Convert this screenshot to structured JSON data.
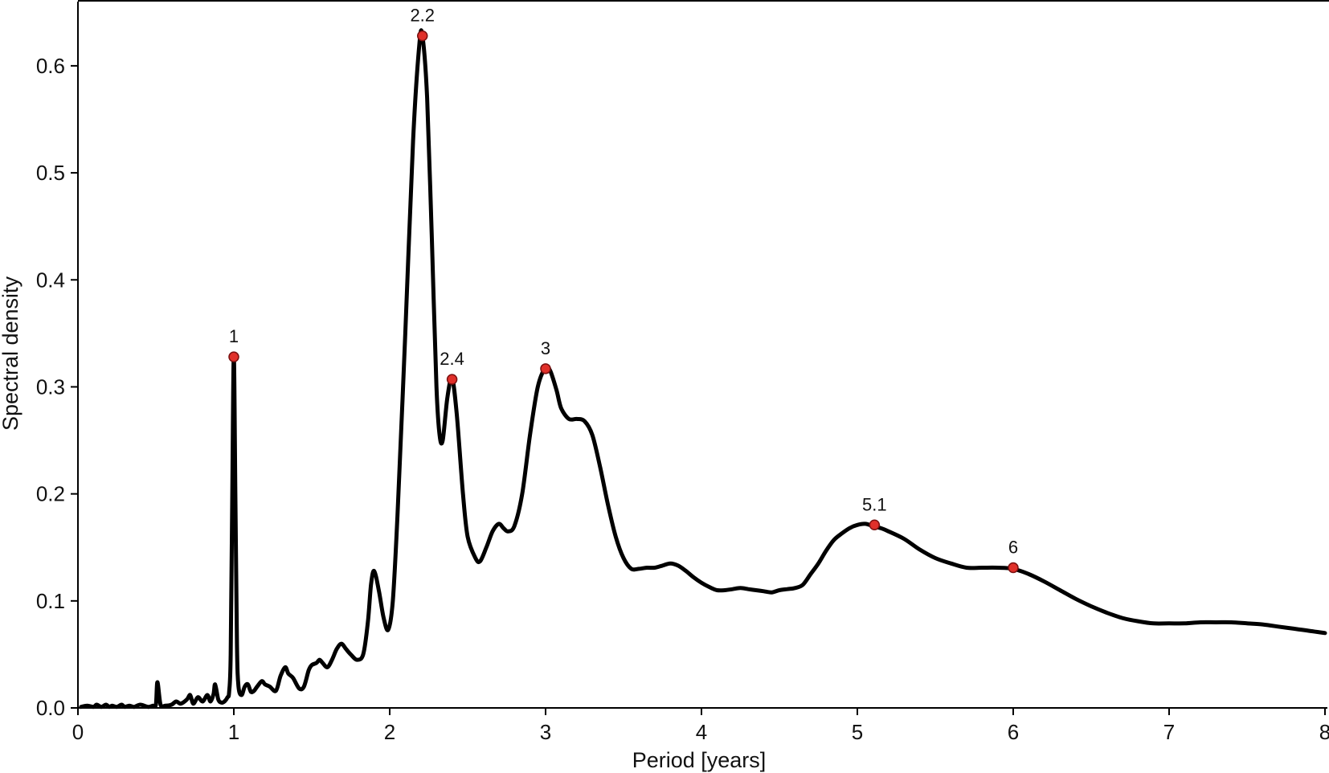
{
  "chart_data": {
    "type": "line",
    "title": "",
    "xlabel": "Period [years]",
    "ylabel": "Spectral density",
    "xlim": [
      0,
      8
    ],
    "ylim": [
      0,
      0.66
    ],
    "xticks": [
      0,
      1,
      2,
      3,
      4,
      5,
      6,
      7,
      8
    ],
    "xtick_labels": [
      "0",
      "1",
      "2",
      "3",
      "4",
      "5",
      "6",
      "7",
      "8"
    ],
    "yticks": [
      0.0,
      0.1,
      0.2,
      0.3,
      0.4,
      0.5,
      0.6
    ],
    "ytick_labels": [
      "0.0",
      "0.1",
      "0.2",
      "0.3",
      "0.4",
      "0.5",
      "0.6"
    ],
    "grid": false,
    "line_color": "#000000",
    "marker_color": "#e0302a",
    "series": [
      {
        "x": [
          0.02,
          0.06,
          0.1,
          0.12,
          0.15,
          0.18,
          0.2,
          0.22,
          0.25,
          0.28,
          0.3,
          0.33,
          0.36,
          0.4,
          0.45,
          0.48,
          0.5,
          0.51,
          0.53,
          0.56,
          0.6,
          0.63,
          0.66,
          0.7,
          0.72,
          0.74,
          0.77,
          0.8,
          0.83,
          0.85,
          0.87,
          0.88,
          0.9,
          0.92,
          0.94,
          0.96,
          0.97,
          0.98,
          0.99,
          1.0,
          1.01,
          1.02,
          1.03,
          1.05,
          1.07,
          1.09,
          1.11,
          1.13,
          1.15,
          1.18,
          1.2,
          1.23,
          1.27,
          1.3,
          1.33,
          1.35,
          1.38,
          1.42,
          1.45,
          1.48,
          1.5,
          1.53,
          1.55,
          1.57,
          1.6,
          1.63,
          1.66,
          1.69,
          1.72,
          1.75,
          1.79,
          1.83,
          1.86,
          1.88,
          1.9,
          1.93,
          1.96,
          1.99,
          2.02,
          2.05,
          2.1,
          2.15,
          2.19,
          2.21,
          2.24,
          2.27,
          2.3,
          2.32,
          2.34,
          2.37,
          2.4,
          2.43,
          2.47,
          2.5,
          2.55,
          2.58,
          2.62,
          2.66,
          2.7,
          2.73,
          2.76,
          2.8,
          2.85,
          2.9,
          2.95,
          3.0,
          3.03,
          3.07,
          3.1,
          3.15,
          3.2,
          3.25,
          3.3,
          3.35,
          3.4,
          3.45,
          3.5,
          3.55,
          3.6,
          3.65,
          3.7,
          3.75,
          3.8,
          3.85,
          3.9,
          3.95,
          4.0,
          4.05,
          4.1,
          4.15,
          4.2,
          4.25,
          4.3,
          4.35,
          4.4,
          4.45,
          4.5,
          4.55,
          4.6,
          4.65,
          4.7,
          4.75,
          4.8,
          4.85,
          4.9,
          4.95,
          5.0,
          5.05,
          5.1,
          5.15,
          5.2,
          5.3,
          5.4,
          5.5,
          5.6,
          5.7,
          5.8,
          5.9,
          6.0,
          6.1,
          6.2,
          6.3,
          6.4,
          6.5,
          6.6,
          6.7,
          6.8,
          6.9,
          7.0,
          7.1,
          7.2,
          7.3,
          7.4,
          7.5,
          7.6,
          7.7,
          7.8,
          7.9,
          8.0
        ],
        "y": [
          0.001,
          0.002,
          0.001,
          0.003,
          0.001,
          0.003,
          0.001,
          0.002,
          0.001,
          0.003,
          0.001,
          0.002,
          0.001,
          0.003,
          0.001,
          0.002,
          0.003,
          0.024,
          0.003,
          0.002,
          0.003,
          0.006,
          0.004,
          0.008,
          0.012,
          0.004,
          0.01,
          0.006,
          0.012,
          0.006,
          0.013,
          0.022,
          0.008,
          0.005,
          0.006,
          0.01,
          0.015,
          0.05,
          0.2,
          0.33,
          0.2,
          0.06,
          0.02,
          0.012,
          0.02,
          0.022,
          0.015,
          0.016,
          0.02,
          0.025,
          0.022,
          0.02,
          0.016,
          0.03,
          0.038,
          0.032,
          0.028,
          0.018,
          0.02,
          0.035,
          0.04,
          0.042,
          0.045,
          0.042,
          0.038,
          0.045,
          0.055,
          0.06,
          0.055,
          0.05,
          0.045,
          0.05,
          0.08,
          0.115,
          0.128,
          0.11,
          0.085,
          0.073,
          0.1,
          0.18,
          0.35,
          0.53,
          0.62,
          0.628,
          0.57,
          0.44,
          0.3,
          0.255,
          0.25,
          0.29,
          0.308,
          0.275,
          0.2,
          0.16,
          0.14,
          0.137,
          0.15,
          0.165,
          0.172,
          0.168,
          0.165,
          0.17,
          0.2,
          0.255,
          0.3,
          0.318,
          0.315,
          0.297,
          0.28,
          0.27,
          0.27,
          0.268,
          0.255,
          0.225,
          0.19,
          0.16,
          0.14,
          0.13,
          0.13,
          0.131,
          0.131,
          0.133,
          0.135,
          0.133,
          0.128,
          0.122,
          0.117,
          0.113,
          0.11,
          0.11,
          0.111,
          0.112,
          0.111,
          0.11,
          0.109,
          0.108,
          0.11,
          0.111,
          0.112,
          0.115,
          0.125,
          0.135,
          0.147,
          0.157,
          0.163,
          0.168,
          0.171,
          0.172,
          0.17,
          0.168,
          0.165,
          0.158,
          0.148,
          0.14,
          0.135,
          0.131,
          0.131,
          0.131,
          0.13,
          0.125,
          0.118,
          0.11,
          0.102,
          0.095,
          0.089,
          0.084,
          0.081,
          0.079,
          0.079,
          0.079,
          0.08,
          0.08,
          0.08,
          0.079,
          0.078,
          0.076,
          0.074,
          0.072,
          0.07
        ]
      }
    ],
    "peaks": [
      {
        "x": 1.0,
        "y": 0.328,
        "label": "1"
      },
      {
        "x": 2.21,
        "y": 0.628,
        "label": "2.2"
      },
      {
        "x": 2.4,
        "y": 0.307,
        "label": "2.4"
      },
      {
        "x": 3.0,
        "y": 0.317,
        "label": "3"
      },
      {
        "x": 5.11,
        "y": 0.171,
        "label": "5.1"
      },
      {
        "x": 6.0,
        "y": 0.131,
        "label": "6"
      }
    ]
  }
}
